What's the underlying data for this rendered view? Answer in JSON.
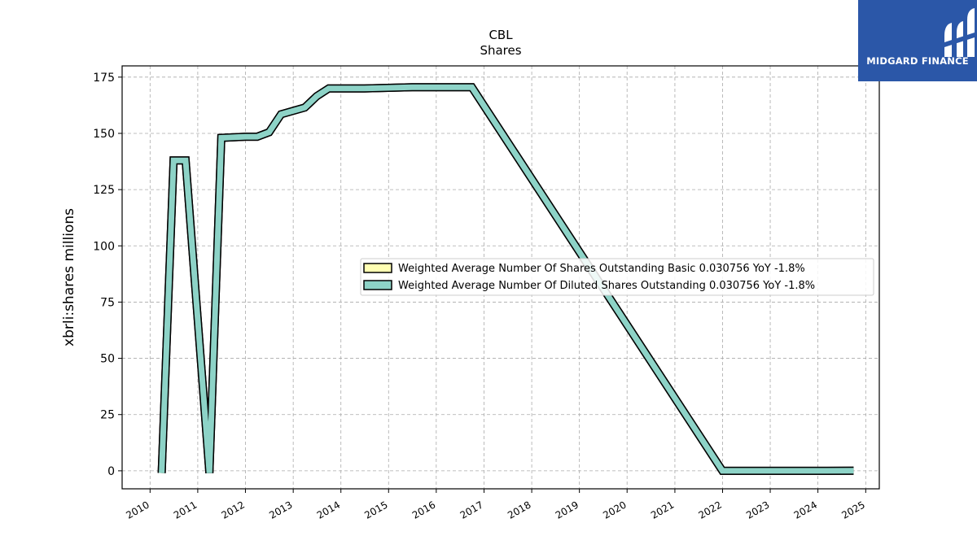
{
  "logo": {
    "text": "MIDGARD FINANCE",
    "background": "#2b57a8"
  },
  "chart_data": {
    "type": "line",
    "title": "CBL",
    "subtitle": "Shares",
    "xlabel": "",
    "ylabel": "xbrli:shares millions",
    "xlim": [
      "2009-06-01",
      "2025-04-15"
    ],
    "ylim": [
      -8,
      180
    ],
    "x_ticks": [
      "2010",
      "2011",
      "2012",
      "2013",
      "2014",
      "2015",
      "2016",
      "2017",
      "2018",
      "2019",
      "2020",
      "2021",
      "2022",
      "2023",
      "2024",
      "2025"
    ],
    "y_ticks": [
      0,
      25,
      50,
      75,
      100,
      125,
      150,
      175
    ],
    "y_tick_labels": [
      "0",
      "25",
      "50",
      "75",
      "100",
      "125",
      "150",
      "175"
    ],
    "grid": true,
    "legend_position": "center-right",
    "series": [
      {
        "name": "Weighted Average Number Of Shares Outstanding Basic  0.030756 YoY -1.8%",
        "color": "#ffffb3",
        "points": [
          [
            "2010-03-31",
            -1
          ],
          [
            "2010-06-30",
            138
          ],
          [
            "2010-09-30",
            138
          ],
          [
            "2011-03-31",
            -1
          ],
          [
            "2011-06-30",
            148
          ],
          [
            "2011-12-31",
            148.5
          ],
          [
            "2012-03-31",
            148.5
          ],
          [
            "2012-06-30",
            150.5
          ],
          [
            "2012-09-30",
            158.5
          ],
          [
            "2013-03-31",
            161.5
          ],
          [
            "2013-06-30",
            166.5
          ],
          [
            "2013-09-30",
            170
          ],
          [
            "2014-06-30",
            170
          ],
          [
            "2015-06-30",
            170.5
          ],
          [
            "2016-06-30",
            170.5
          ],
          [
            "2016-09-30",
            170.5
          ],
          [
            "2021-12-31",
            0
          ],
          [
            "2024-09-30",
            0.03
          ]
        ]
      },
      {
        "name": "Weighted Average Number Of Diluted Shares Outstanding  0.030756 YoY -1.8%",
        "color": "#8dd3c7",
        "points": [
          [
            "2010-03-31",
            -1
          ],
          [
            "2010-06-30",
            138
          ],
          [
            "2010-09-30",
            138
          ],
          [
            "2011-03-31",
            -1
          ],
          [
            "2011-06-30",
            148
          ],
          [
            "2011-12-31",
            148.5
          ],
          [
            "2012-03-31",
            148.5
          ],
          [
            "2012-06-30",
            150.5
          ],
          [
            "2012-09-30",
            158.5
          ],
          [
            "2013-03-31",
            161.5
          ],
          [
            "2013-06-30",
            166.5
          ],
          [
            "2013-09-30",
            170
          ],
          [
            "2014-06-30",
            170
          ],
          [
            "2015-06-30",
            170.5
          ],
          [
            "2016-06-30",
            170.5
          ],
          [
            "2016-09-30",
            170.5
          ],
          [
            "2021-12-31",
            0
          ],
          [
            "2024-09-30",
            0.03
          ]
        ]
      }
    ]
  }
}
